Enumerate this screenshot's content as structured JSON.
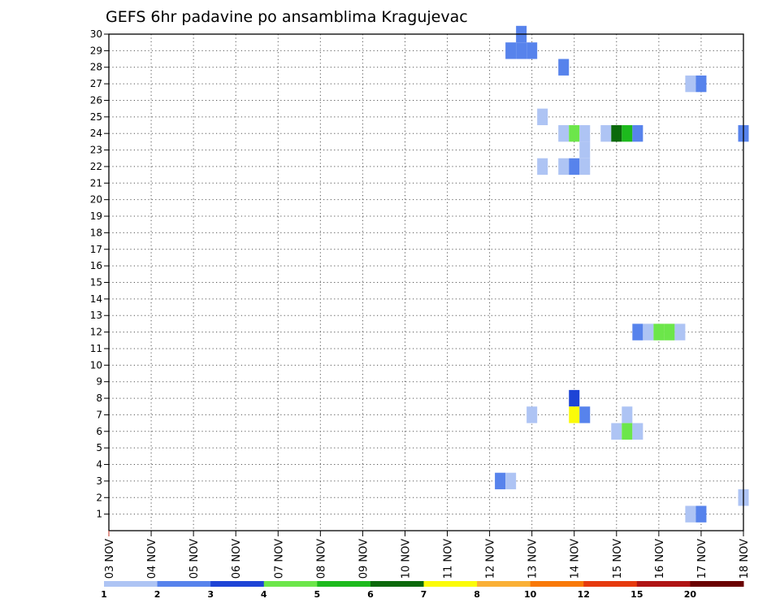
{
  "chart_data": {
    "type": "heatmap",
    "title": "GEFS 6hr padavine po ansamblima Kragujevac",
    "xlabel": "",
    "ylabel": "",
    "x_tick_labels": [
      "03 NOV",
      "04 NOV",
      "05 NOV",
      "06 NOV",
      "07 NOV",
      "08 NOV",
      "09 NOV",
      "10 NOV",
      "11 NOV",
      "12 NOV",
      "13 NOV",
      "14 NOV",
      "15 NOV",
      "16 NOV",
      "17 NOV",
      "18 NOV"
    ],
    "xlim": [
      "03 NOV",
      "18 NOV"
    ],
    "x_step_hours": 6,
    "y_tick_labels": [
      "1",
      "2",
      "3",
      "4",
      "5",
      "6",
      "7",
      "8",
      "9",
      "10",
      "11",
      "12",
      "13",
      "14",
      "15",
      "16",
      "17",
      "18",
      "19",
      "20",
      "21",
      "22",
      "23",
      "24",
      "25",
      "26",
      "27",
      "28",
      "29",
      "30"
    ],
    "ylim": [
      0,
      30
    ],
    "grid": true,
    "legend_placement": "bottom",
    "legend": {
      "labels": [
        "1",
        "2",
        "3",
        "4",
        "5",
        "6",
        "7",
        "8",
        "10",
        "12",
        "15",
        "20"
      ],
      "colors": [
        "#aec4f4",
        "#5783ec",
        "#1e44d6",
        "#6ce64a",
        "#1dba1d",
        "#0b690b",
        "#fbfb08",
        "#fab036",
        "#f97908",
        "#e63a0e",
        "#b01414",
        "#6a0000"
      ]
    },
    "points": [
      {
        "x": "12 NOV 12Z",
        "y": 29,
        "v": 2
      },
      {
        "x": "12 NOV 18Z",
        "y": 29,
        "v": 2
      },
      {
        "x": "13 NOV 00Z",
        "y": 29,
        "v": 2
      },
      {
        "x": "12 NOV 18Z",
        "y": 30,
        "v": 2
      },
      {
        "x": "13 NOV 18Z",
        "y": 28,
        "v": 2
      },
      {
        "x": "16 NOV 18Z",
        "y": 27,
        "v": 1
      },
      {
        "x": "17 NOV 00Z",
        "y": 27,
        "v": 2
      },
      {
        "x": "13 NOV 06Z",
        "y": 25,
        "v": 1
      },
      {
        "x": "13 NOV 18Z",
        "y": 24,
        "v": 1
      },
      {
        "x": "14 NOV 00Z",
        "y": 24,
        "v": 4
      },
      {
        "x": "14 NOV 06Z",
        "y": 24,
        "v": 1
      },
      {
        "x": "14 NOV 18Z",
        "y": 24,
        "v": 1
      },
      {
        "x": "15 NOV 00Z",
        "y": 24,
        "v": 6
      },
      {
        "x": "15 NOV 06Z",
        "y": 24,
        "v": 5
      },
      {
        "x": "15 NOV 12Z",
        "y": 24,
        "v": 2
      },
      {
        "x": "18 NOV 00Z",
        "y": 24,
        "v": 2
      },
      {
        "x": "14 NOV 06Z",
        "y": 23,
        "v": 1
      },
      {
        "x": "13 NOV 06Z",
        "y": 22,
        "v": 1
      },
      {
        "x": "13 NOV 18Z",
        "y": 22,
        "v": 1
      },
      {
        "x": "14 NOV 00Z",
        "y": 22,
        "v": 2
      },
      {
        "x": "14 NOV 06Z",
        "y": 22,
        "v": 1
      },
      {
        "x": "15 NOV 12Z",
        "y": 12,
        "v": 2
      },
      {
        "x": "15 NOV 18Z",
        "y": 12,
        "v": 1
      },
      {
        "x": "16 NOV 00Z",
        "y": 12,
        "v": 4
      },
      {
        "x": "16 NOV 06Z",
        "y": 12,
        "v": 4
      },
      {
        "x": "16 NOV 12Z",
        "y": 12,
        "v": 1
      },
      {
        "x": "14 NOV 00Z",
        "y": 8,
        "v": 3
      },
      {
        "x": "13 NOV 00Z",
        "y": 7,
        "v": 1
      },
      {
        "x": "14 NOV 00Z",
        "y": 7,
        "v": 7
      },
      {
        "x": "14 NOV 06Z",
        "y": 7,
        "v": 2
      },
      {
        "x": "15 NOV 06Z",
        "y": 7,
        "v": 1
      },
      {
        "x": "15 NOV 00Z",
        "y": 6,
        "v": 1
      },
      {
        "x": "15 NOV 06Z",
        "y": 6,
        "v": 4
      },
      {
        "x": "15 NOV 12Z",
        "y": 6,
        "v": 1
      },
      {
        "x": "12 NOV 06Z",
        "y": 3,
        "v": 2
      },
      {
        "x": "12 NOV 12Z",
        "y": 3,
        "v": 1
      },
      {
        "x": "18 NOV 00Z",
        "y": 2,
        "v": 1
      },
      {
        "x": "16 NOV 18Z",
        "y": 1,
        "v": 1
      },
      {
        "x": "17 NOV 00Z",
        "y": 1,
        "v": 2
      }
    ]
  }
}
